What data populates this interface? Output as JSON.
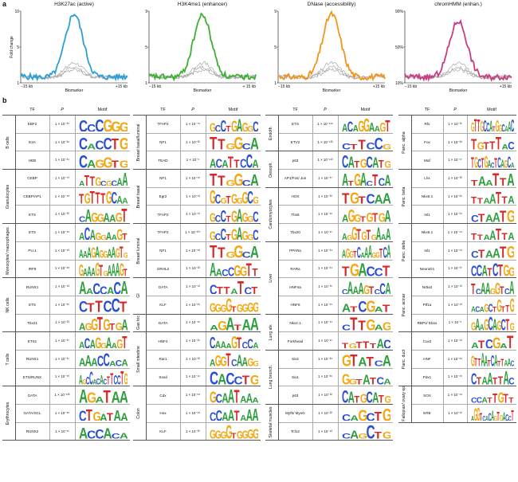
{
  "panel_a_label": "a",
  "panel_b_label": "b",
  "chart_data": [
    {
      "type": "line",
      "title": "H3K27ac (active)",
      "ylabel": "Fold change",
      "yticks": [
        "10",
        "5",
        "1"
      ],
      "ylim": [
        1,
        10
      ],
      "xticks": [
        "−15 kb",
        "Biomarker",
        "+15 kb"
      ],
      "color": "#2a9fd8"
    },
    {
      "type": "line",
      "title": "H3K4me1 (enhancer)",
      "ylabel": "",
      "yticks": [
        "9",
        "5",
        "1"
      ],
      "ylim": [
        1,
        9
      ],
      "xticks": [
        "−15 kb",
        "Biomarker",
        "+ 15 kb"
      ],
      "color": "#3cb034"
    },
    {
      "type": "line",
      "title": "DNase (accessibility)",
      "ylabel": "",
      "yticks": [
        "9",
        "5",
        "1"
      ],
      "ylim": [
        1,
        9
      ],
      "xticks": [
        "−15 kb",
        "Biomarker",
        "+15 kb"
      ],
      "color": "#f0961e"
    },
    {
      "type": "line",
      "title": "chromHMM (enhan.)",
      "ylabel": "",
      "yticks": [
        "90%",
        "50%",
        "10%"
      ],
      "ylim": [
        10,
        90
      ],
      "xticks": [
        "−15 kb",
        "Biomarker",
        "+15 kb"
      ],
      "color": "#c83c82"
    }
  ],
  "headers": {
    "tf": "TF",
    "p": "P",
    "motif": "Motif"
  },
  "columns": [
    {
      "groups": [
        {
          "label": "B cells",
          "rows": [
            {
              "tf": "EBF2",
              "p": "1 × 10⁻³⁵",
              "m": "CCCGGG"
            },
            {
              "tf": "E2A",
              "p": "1 × 10⁻²⁸",
              "m": "CACCTG"
            },
            {
              "tf": "HEB",
              "p": "1 × 10⁻²⁴",
              "m": "CAGGTG"
            }
          ]
        },
        {
          "label": "Granulocytes",
          "rows": [
            {
              "tf": "CEBP",
              "p": "1 × 10⁻⁷⁰",
              "m": "ATTGCGCAA"
            },
            {
              "tf": "CEBP/AP1",
              "p": "1 × 10⁻⁴⁸",
              "m": "TGTTTGCAA"
            },
            {
              "tf": "ETS",
              "p": "1 × 10⁻³⁰",
              "m": "CAGGAAGT"
            }
          ]
        },
        {
          "label": "Monocytes/ macrophages",
          "rows": [
            {
              "tf": "ETS",
              "p": "1 × 10⁻⁹⁵",
              "m": "ACAGGAAGT"
            },
            {
              "tf": "PU.1",
              "p": "1 × 10⁻⁹⁰",
              "m": "AAAGAGGAAGTG"
            },
            {
              "tf": "IRF8",
              "p": "1 × 10⁻⁶⁸",
              "m": "GAAAGTGAAAGT"
            }
          ]
        },
        {
          "label": "NK cells",
          "rows": [
            {
              "tf": "RUNX1",
              "p": "1 × 10⁻⁶³",
              "m": "AACCACA"
            },
            {
              "tf": "ETS",
              "p": "1 × 10⁻²⁵",
              "m": "CTTCCT"
            },
            {
              "tf": "Tbx21",
              "p": "1 × 10⁻²³",
              "m": "AGGTGTGA"
            }
          ]
        },
        {
          "label": "T cells",
          "rows": [
            {
              "tf": "ETS1",
              "p": "1 × 10⁻²⁷",
              "m": "ACAGGAAGT"
            },
            {
              "tf": "RUNX1",
              "p": "1 × 10⁻³⁷",
              "m": "AAACCACA"
            },
            {
              "tf": "ETS/RUNX",
              "p": "1 × 10⁻⁵⁰",
              "m": "AGCCACACTTCCTG"
            }
          ]
        },
        {
          "label": "Erythrocytes",
          "rows": [
            {
              "tf": "GATA",
              "p": "1 × 10⁻¹³³",
              "m": "AGATAA"
            },
            {
              "tf": "GATA/SCL",
              "p": "1 × 10⁻⁸⁶",
              "m": "CTGATAA"
            },
            {
              "tf": "RUNX2",
              "p": "1 × 10⁻¹¹",
              "m": "ACCACA"
            }
          ]
        }
      ]
    },
    {
      "groups": [
        {
          "label": "Breast basal/luminal",
          "rows": [
            {
              "tf": "TFAP2",
              "p": "1 × 10⁻⁷⁵",
              "m": "GCCTGAGGC"
            },
            {
              "tf": "NF1",
              "p": "1 × 10⁻³²",
              "m": "TTGGCA"
            },
            {
              "tf": "TEAD",
              "p": "1 × 10⁻⁶",
              "m": "ACATTCCA"
            }
          ]
        },
        {
          "label": "Breast basal",
          "rows": [
            {
              "tf": "NF1",
              "p": "1 × 10⁻¹⁵",
              "m": "TTGGCA"
            },
            {
              "tf": "Egr2",
              "p": "1 × 10⁻¹³",
              "m": "GCGTGGGCG"
            },
            {
              "tf": "TFAP2",
              "p": "1 × 10⁻¹³",
              "m": "GCCTGAGGC"
            }
          ]
        },
        {
          "label": "Breast luminal",
          "rows": [
            {
              "tf": "TFAP2",
              "p": "1 × 10⁻¹⁰⁷",
              "m": "GCCTGAGGC"
            },
            {
              "tf": "NF1",
              "p": "1 × 10⁻⁶⁸",
              "m": "TTGGCA"
            },
            {
              "tf": "GRHL2",
              "p": "1 × 10⁻²³",
              "m": "AACCGGTT"
            }
          ]
        },
        {
          "label": "GI",
          "rows": [
            {
              "tf": "GATA",
              "p": "1 × 10⁻¹³",
              "m": "CTTATCT"
            },
            {
              "tf": "KLF",
              "p": "1 × 10⁻³⁴",
              "m": "GGGGTGGGG"
            }
          ]
        },
        {
          "label": "Gas tric",
          "rows": [
            {
              "tf": "GATA",
              "p": "1 × 10⁻¹⁶",
              "m": "AGATAA"
            }
          ]
        },
        {
          "label": "Small intestine",
          "rows": [
            {
              "tf": "HNF4",
              "p": "1 × 10⁻²⁶",
              "m": "CAAAGTCCA"
            },
            {
              "tf": "Rar1",
              "p": "1 × 10⁻²³",
              "m": "AGGTCAAGG"
            },
            {
              "tf": "Snail",
              "p": "1 × 10⁻¹⁴",
              "m": "CACCTG"
            }
          ]
        },
        {
          "label": "Colon",
          "rows": [
            {
              "tf": "Cdx",
              "p": "1 × 10⁻⁵⁴",
              "m": "GCAATAAA"
            },
            {
              "tf": "Hox",
              "p": "1 × 10⁻⁵¹",
              "m": "CCAATAAA"
            },
            {
              "tf": "KLF",
              "p": "1 × 10⁻²⁰",
              "m": "GGGGTGGGG"
            }
          ]
        }
      ]
    },
    {
      "groups": [
        {
          "label": "Endoth.",
          "rows": [
            {
              "tf": "ETS",
              "p": "1 × 10⁻¹¹⁶",
              "m": "ACAGGAAGT"
            },
            {
              "tf": "ETV2",
              "p": "1 × 10⁻¹³³",
              "m": "CTTCCG"
            }
          ]
        },
        {
          "label": "Oesoph.",
          "rows": [
            {
              "tf": "p63",
              "p": "1 × 10⁻¹¹³",
              "m": "CATGCATG"
            },
            {
              "tf": "AP1/Fos/ Jun",
              "p": "1 × 10⁻³⁷",
              "m": "ATGACTCA"
            }
          ]
        },
        {
          "label": "Cardiomyocytes",
          "rows": [
            {
              "tf": "HOX",
              "p": "1 × 10⁻²⁰",
              "m": "TGTCAA"
            },
            {
              "tf": "Tbx5",
              "p": "1 × 10⁻¹⁶",
              "m": "AGGTGTGA"
            },
            {
              "tf": "Tbx20",
              "p": "1 × 10⁻¹¹",
              "m": "AGGTGTGAAA"
            }
          ]
        },
        {
          "label": "Liver",
          "rows": [
            {
              "tf": "PPARa",
              "p": "1 × 10⁻³⁴",
              "m": "AGGTCAAAGGTCA"
            },
            {
              "tf": "RARa",
              "p": "1 × 10⁻²⁴",
              "m": "TGACCT"
            },
            {
              "tf": "HNF4a",
              "p": "1 × 10⁻²¹",
              "m": "CAAAGTCCA"
            },
            {
              "tf": "HNF6",
              "p": "1 × 10⁻¹⁵",
              "m": "ATCGAT"
            }
          ]
        },
        {
          "label": "Lung alv.",
          "rows": [
            {
              "tf": "Nkx2.1",
              "p": "1 × 10⁻⁶¹",
              "m": "CTTGAG"
            },
            {
              "tf": "Forkhead",
              "p": "1 × 10⁻¹¹",
              "m": "TGTTTAC"
            }
          ]
        },
        {
          "label": "Lung bronch.",
          "rows": [
            {
              "tf": "Six2",
              "p": "1 × 10⁻²⁸",
              "m": "GTATCA"
            },
            {
              "tf": "Six1",
              "p": "1 × 10⁻³⁶",
              "m": "GGTATCA"
            },
            {
              "tf": "p63",
              "p": "1 × 10⁻²²",
              "m": "CATGCATG"
            }
          ]
        },
        {
          "label": "Skeletal muscles",
          "rows": [
            {
              "tf": "Myf5/ MyoG",
              "p": "1 × 10⁻³²",
              "m": "CAGCTG"
            },
            {
              "tf": "Tcf12",
              "p": "1 × 10⁻⁴²",
              "m": "CAGCTG"
            }
          ]
        }
      ]
    },
    {
      "groups": [
        {
          "label": "Panc. alpha",
          "rows": [
            {
              "tf": "Rfx",
              "p": "1 × 10⁻³¹",
              "m": "GTTGCCATGGCAAC"
            },
            {
              "tf": "Fox",
              "p": "1 × 10⁻²⁸",
              "m": "TGTTTAC"
            },
            {
              "tf": "Maf",
              "p": "1 × 10⁻¹⁷",
              "m": "TGCTGACTCAGCA"
            }
          ]
        },
        {
          "label": "Panc. beta",
          "rows": [
            {
              "tf": "Lhx",
              "p": "1 × 10⁻³⁰",
              "m": "TAATTA"
            },
            {
              "tf": "Nkx6.1",
              "p": "1 × 10⁻²⁹",
              "m": "TTAATTA"
            },
            {
              "tf": "Isl1",
              "p": "1 × 10⁻²⁴",
              "m": "CTAATG"
            }
          ]
        },
        {
          "label": "Panc. delta",
          "rows": [
            {
              "tf": "Nkx6.1",
              "p": "1 × 10⁻⁴⁴",
              "m": "TTAATTA"
            },
            {
              "tf": "Isl1",
              "p": "1 × 10⁻⁴¹",
              "m": "CTAATG"
            },
            {
              "tf": "NeuroD1",
              "p": "1 × 10⁻³⁷",
              "m": "CCATCTGG"
            }
          ]
        },
        {
          "label": "Panc. acinar",
          "rows": [
            {
              "tf": "Nr5a2",
              "p": "1 × 10⁻¹³",
              "m": "TCAAGGTCA"
            },
            {
              "tf": "Ptf1a",
              "p": "1 × 10⁻¹³",
              "m": "ACAGCTGTTG"
            },
            {
              "tf": "RBPJ/ Ebox",
              "p": "1 × 10⁻⁵",
              "m": "GAAGCAGCTG"
            }
          ]
        },
        {
          "label": "Panc. duct",
          "rows": [
            {
              "tf": "Cux2",
              "p": "1 × 10⁻⁶¹",
              "m": "ATCGAT"
            },
            {
              "tf": "HNF",
              "p": "1 × 10⁻⁵⁹",
              "m": "GTTAATCATTAAC"
            },
            {
              "tf": "Pdx1",
              "p": "1 × 10⁻¹⁵",
              "m": "CTAATTAC"
            }
          ]
        },
        {
          "label": "Fallopian/ ovary ep.",
          "rows": [
            {
              "tf": "SOX",
              "p": "1 × 10⁻⁴⁹",
              "m": "CCATTGTT"
            },
            {
              "tf": "ERE",
              "p": "1 × 10⁻¹²",
              "m": "AGGTCACAGTGACCT"
            }
          ]
        }
      ]
    }
  ]
}
